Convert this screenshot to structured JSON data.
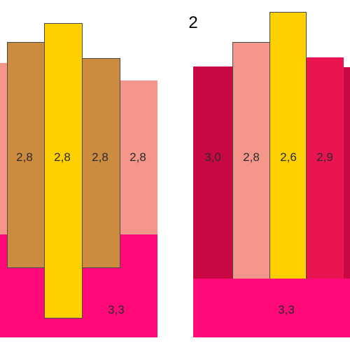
{
  "colors": {
    "salmon": "#f4978a",
    "caramel": "#cd8b40",
    "gold": "#ffd000",
    "magenta": "#ff0a78",
    "crimson": "#c70842",
    "raspberry": "#ea1550"
  },
  "title": "2",
  "left_group": {
    "columns": [
      "2,8",
      "2,8",
      "2,8",
      "2,8"
    ],
    "base": "3,3"
  },
  "right_group": {
    "columns": [
      "3,0",
      "2,8",
      "2,6",
      "2,9"
    ],
    "base": "3,3"
  }
}
